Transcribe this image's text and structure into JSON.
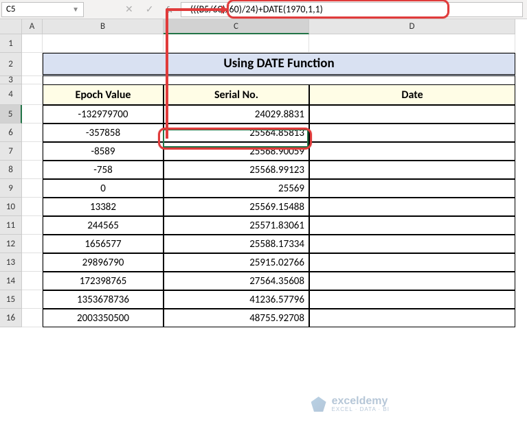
{
  "name_box": "C5",
  "formula": "=(((B5/60)/60)/24)+DATE(1970,1,1)",
  "columns": [
    "A",
    "B",
    "C",
    "D"
  ],
  "title": "Using DATE Function",
  "headers": {
    "B": "Epoch Value",
    "C": "Serial No.",
    "D": "Date"
  },
  "rows": [
    {
      "n": 5,
      "B": "-132979700",
      "C": "24029.8831"
    },
    {
      "n": 6,
      "B": "-357858",
      "C": "25564.85813"
    },
    {
      "n": 7,
      "B": "-8589",
      "C": "25568.90059"
    },
    {
      "n": 8,
      "B": "-758",
      "C": "25568.99123"
    },
    {
      "n": 9,
      "B": "0",
      "C": "25569"
    },
    {
      "n": 10,
      "B": "13382",
      "C": "25569.15488"
    },
    {
      "n": 11,
      "B": "244565",
      "C": "25571.83061"
    },
    {
      "n": 12,
      "B": "1656577",
      "C": "25588.17334"
    },
    {
      "n": 13,
      "B": "29896790",
      "C": "25915.02766"
    },
    {
      "n": 14,
      "B": "172398765",
      "C": "27564.35608"
    },
    {
      "n": 15,
      "B": "1353678736",
      "C": "41236.57796"
    },
    {
      "n": 16,
      "B": "2003350500",
      "C": "48755.92708"
    }
  ],
  "watermark": {
    "name": "exceldemy",
    "tag": "EXCEL · DATA · BI"
  },
  "colors": {
    "title_bg": "#d9e1f2",
    "header_bg": "#fffde6",
    "callout": "#e03b3b",
    "excel_green": "#217346"
  }
}
